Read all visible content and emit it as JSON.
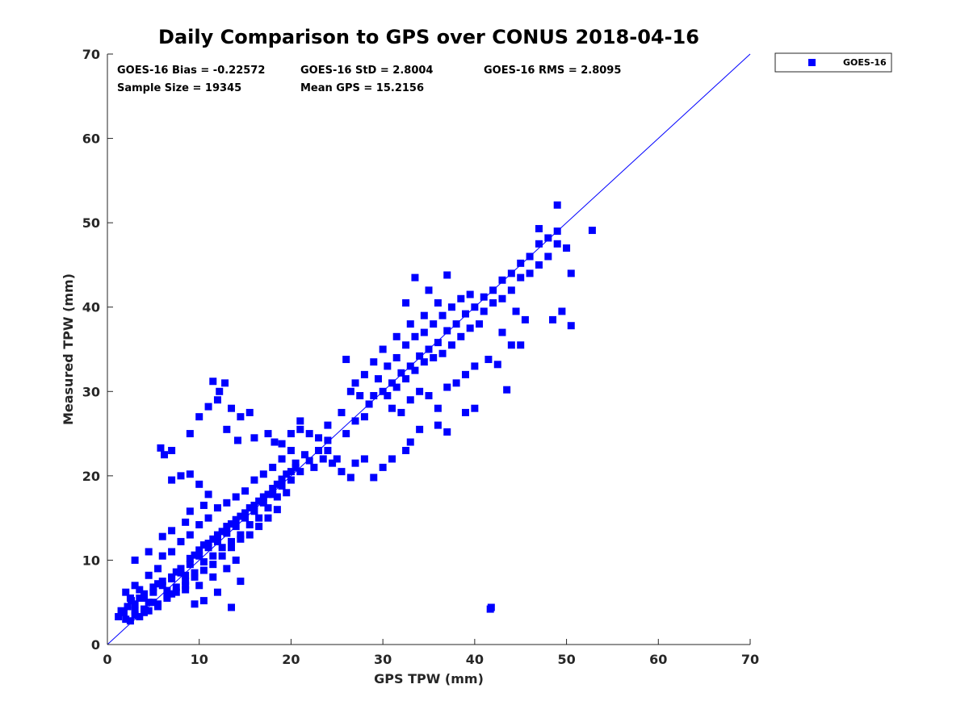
{
  "chart_data": {
    "type": "scatter",
    "title": "Daily Comparison to GPS over CONUS 2018-04-16",
    "xlabel": "GPS TPW (mm)",
    "ylabel": "Measured TPW (mm)",
    "xlim": [
      0,
      70
    ],
    "ylim": [
      0,
      70
    ],
    "xticks": [
      "0",
      "10",
      "20",
      "30",
      "40",
      "50",
      "60",
      "70"
    ],
    "yticks": [
      "0",
      "10",
      "20",
      "30",
      "40",
      "50",
      "60",
      "70"
    ],
    "grid": false,
    "legend": {
      "position": "outside-top-right",
      "entries": [
        "GOES-16"
      ]
    },
    "stats": {
      "bias": "GOES-16 Bias = -0.22572",
      "std": "GOES-16 StD = 2.8004",
      "rms": "GOES-16 RMS = 2.8095",
      "sample": "Sample Size = 19345",
      "mean": "Mean GPS = 15.2156"
    },
    "reference_line": {
      "name": "one-to-one",
      "x": [
        0,
        70
      ],
      "y": [
        0,
        70
      ]
    },
    "series": [
      {
        "name": "GOES-16",
        "color": "#0000ff",
        "marker": "square",
        "points": [
          [
            1.2,
            3.3
          ],
          [
            1.8,
            3.8
          ],
          [
            2.2,
            4.5
          ],
          [
            2.6,
            5.2
          ],
          [
            3.0,
            4.0
          ],
          [
            3.5,
            5.5
          ],
          [
            4.0,
            6.0
          ],
          [
            4.5,
            5.0
          ],
          [
            5.0,
            6.8
          ],
          [
            5.5,
            7.2
          ],
          [
            6.0,
            7.5
          ],
          [
            6.5,
            6.4
          ],
          [
            7.0,
            8.0
          ],
          [
            7.5,
            8.6
          ],
          [
            8.0,
            9.0
          ],
          [
            8.5,
            8.2
          ],
          [
            9.0,
            10.2
          ],
          [
            9.5,
            10.6
          ],
          [
            10.0,
            11.2
          ],
          [
            10.5,
            11.8
          ],
          [
            11.0,
            12.0
          ],
          [
            11.5,
            12.5
          ],
          [
            12.0,
            13.0
          ],
          [
            12.5,
            13.4
          ],
          [
            13.0,
            14.0
          ],
          [
            13.5,
            14.3
          ],
          [
            14.0,
            14.8
          ],
          [
            14.5,
            15.2
          ],
          [
            15.0,
            15.6
          ],
          [
            15.5,
            16.2
          ],
          [
            16.0,
            16.5
          ],
          [
            16.5,
            17.0
          ],
          [
            17.0,
            17.5
          ],
          [
            17.5,
            17.8
          ],
          [
            18.0,
            18.5
          ],
          [
            18.5,
            19.0
          ],
          [
            19.0,
            19.6
          ],
          [
            19.5,
            20.2
          ],
          [
            20.0,
            20.5
          ],
          [
            20.5,
            21.0
          ],
          [
            2.0,
            6.2
          ],
          [
            3.0,
            7.0
          ],
          [
            4.0,
            4.2
          ],
          [
            5.0,
            5.0
          ],
          [
            6.5,
            5.8
          ],
          [
            7.5,
            6.8
          ],
          [
            8.5,
            7.5
          ],
          [
            9.5,
            8.5
          ],
          [
            10.5,
            9.8
          ],
          [
            11.5,
            10.5
          ],
          [
            12.5,
            11.5
          ],
          [
            13.5,
            12.2
          ],
          [
            14.5,
            13.0
          ],
          [
            15.5,
            14.2
          ],
          [
            16.5,
            15.0
          ],
          [
            17.5,
            16.2
          ],
          [
            18.5,
            17.5
          ],
          [
            8.0,
            12.2
          ],
          [
            9.0,
            13.0
          ],
          [
            10.0,
            14.2
          ],
          [
            11.0,
            15.0
          ],
          [
            12.0,
            16.2
          ],
          [
            13.0,
            16.8
          ],
          [
            14.0,
            17.5
          ],
          [
            15.0,
            18.2
          ],
          [
            16.0,
            19.5
          ],
          [
            17.0,
            20.2
          ],
          [
            18.0,
            21.0
          ],
          [
            19.0,
            22.0
          ],
          [
            20.0,
            23.0
          ],
          [
            6.0,
            10.5
          ],
          [
            7.0,
            11.0
          ],
          [
            5.5,
            9.0
          ],
          [
            4.5,
            8.2
          ],
          [
            3.5,
            6.5
          ],
          [
            2.5,
            5.5
          ],
          [
            1.5,
            4.0
          ],
          [
            2.0,
            3.0
          ],
          [
            3.0,
            3.5
          ],
          [
            4.0,
            3.8
          ],
          [
            5.5,
            4.5
          ],
          [
            7.0,
            6.0
          ],
          [
            8.5,
            6.5
          ],
          [
            10.0,
            7.0
          ],
          [
            11.5,
            8.0
          ],
          [
            13.0,
            9.0
          ],
          [
            14.0,
            10.0
          ],
          [
            12.0,
            6.2
          ],
          [
            13.5,
            4.4
          ],
          [
            14.5,
            7.5
          ],
          [
            9.5,
            4.8
          ],
          [
            10.5,
            5.2
          ],
          [
            3.0,
            10.0
          ],
          [
            4.5,
            11.0
          ],
          [
            6.0,
            12.8
          ],
          [
            7.0,
            13.5
          ],
          [
            8.5,
            14.5
          ],
          [
            9.0,
            15.8
          ],
          [
            10.5,
            16.5
          ],
          [
            11.0,
            17.8
          ],
          [
            9.0,
            20.2
          ],
          [
            10.0,
            19.0
          ],
          [
            8.0,
            20.0
          ],
          [
            7.0,
            19.5
          ],
          [
            5.8,
            23.3
          ],
          [
            6.2,
            22.5
          ],
          [
            7.0,
            23.0
          ],
          [
            9.0,
            25.0
          ],
          [
            10.0,
            27.0
          ],
          [
            11.0,
            28.2
          ],
          [
            12.0,
            29.0
          ],
          [
            11.5,
            31.2
          ],
          [
            12.2,
            30.0
          ],
          [
            12.8,
            31.0
          ],
          [
            13.5,
            28.0
          ],
          [
            14.5,
            27.0
          ],
          [
            15.5,
            27.5
          ],
          [
            13.0,
            25.5
          ],
          [
            14.2,
            24.2
          ],
          [
            16.0,
            24.5
          ],
          [
            17.5,
            25.0
          ],
          [
            18.2,
            24.0
          ],
          [
            19.0,
            23.8
          ],
          [
            20.5,
            21.5
          ],
          [
            21.0,
            25.5
          ],
          [
            21.5,
            22.5
          ],
          [
            22.5,
            21.0
          ],
          [
            23.0,
            24.5
          ],
          [
            24.0,
            23.0
          ],
          [
            25.0,
            22.0
          ],
          [
            25.5,
            27.5
          ],
          [
            26.0,
            25.0
          ],
          [
            27.0,
            26.5
          ],
          [
            28.0,
            27.0
          ],
          [
            28.5,
            28.5
          ],
          [
            29.0,
            29.5
          ],
          [
            30.0,
            30.0
          ],
          [
            31.0,
            31.0
          ],
          [
            32.0,
            32.2
          ],
          [
            33.0,
            33.0
          ],
          [
            34.0,
            34.2
          ],
          [
            35.0,
            35.0
          ],
          [
            36.0,
            35.8
          ],
          [
            37.0,
            37.2
          ],
          [
            38.0,
            38.0
          ],
          [
            39.0,
            39.2
          ],
          [
            40.0,
            40.0
          ],
          [
            41.0,
            41.2
          ],
          [
            42.0,
            42.0
          ],
          [
            43.0,
            43.2
          ],
          [
            44.0,
            44.0
          ],
          [
            45.0,
            45.2
          ],
          [
            46.0,
            46.0
          ],
          [
            47.0,
            47.5
          ],
          [
            48.0,
            48.2
          ],
          [
            49.0,
            49.0
          ],
          [
            30.5,
            33.0
          ],
          [
            31.5,
            34.0
          ],
          [
            32.5,
            35.5
          ],
          [
            33.5,
            36.5
          ],
          [
            34.5,
            37.0
          ],
          [
            35.5,
            38.0
          ],
          [
            36.5,
            39.0
          ],
          [
            37.5,
            40.0
          ],
          [
            38.5,
            41.0
          ],
          [
            39.5,
            41.5
          ],
          [
            31.0,
            28.0
          ],
          [
            32.0,
            27.5
          ],
          [
            33.0,
            29.0
          ],
          [
            34.0,
            30.0
          ],
          [
            35.0,
            29.5
          ],
          [
            36.0,
            28.0
          ],
          [
            37.0,
            30.5
          ],
          [
            38.0,
            31.0
          ],
          [
            39.0,
            32.0
          ],
          [
            40.0,
            33.0
          ],
          [
            30.0,
            35.0
          ],
          [
            31.5,
            36.5
          ],
          [
            33.0,
            38.0
          ],
          [
            34.5,
            39.0
          ],
          [
            36.0,
            40.5
          ],
          [
            32.5,
            40.5
          ],
          [
            33.5,
            43.5
          ],
          [
            35.0,
            42.0
          ],
          [
            37.0,
            43.8
          ],
          [
            29.0,
            33.5
          ],
          [
            28.0,
            32.0
          ],
          [
            27.0,
            31.0
          ],
          [
            26.5,
            30.0
          ],
          [
            26.0,
            33.8
          ],
          [
            27.5,
            29.5
          ],
          [
            29.5,
            31.5
          ],
          [
            30.5,
            29.5
          ],
          [
            31.5,
            30.5
          ],
          [
            32.5,
            31.5
          ],
          [
            33.5,
            32.5
          ],
          [
            34.5,
            33.5
          ],
          [
            35.5,
            34.0
          ],
          [
            36.5,
            34.5
          ],
          [
            37.5,
            35.5
          ],
          [
            38.5,
            36.5
          ],
          [
            39.5,
            37.5
          ],
          [
            40.5,
            38.0
          ],
          [
            41.0,
            39.5
          ],
          [
            42.0,
            40.5
          ],
          [
            43.0,
            41.0
          ],
          [
            44.0,
            42.0
          ],
          [
            45.0,
            43.5
          ],
          [
            46.0,
            44.0
          ],
          [
            47.0,
            45.0
          ],
          [
            48.0,
            46.0
          ],
          [
            49.0,
            47.5
          ],
          [
            50.0,
            47.0
          ],
          [
            50.5,
            44.0
          ],
          [
            49.5,
            39.5
          ],
          [
            48.5,
            38.5
          ],
          [
            50.5,
            37.8
          ],
          [
            52.8,
            49.1
          ],
          [
            49.0,
            52.1
          ],
          [
            47.0,
            49.3
          ],
          [
            44.0,
            35.5
          ],
          [
            45.0,
            35.5
          ],
          [
            43.0,
            37.0
          ],
          [
            45.5,
            38.5
          ],
          [
            44.5,
            39.5
          ],
          [
            42.5,
            33.2
          ],
          [
            41.5,
            33.8
          ],
          [
            43.5,
            30.2
          ],
          [
            39.0,
            27.5
          ],
          [
            40.0,
            28.0
          ],
          [
            37.0,
            25.2
          ],
          [
            36.0,
            26.0
          ],
          [
            34.0,
            25.5
          ],
          [
            33.0,
            24.0
          ],
          [
            32.5,
            23.0
          ],
          [
            31.0,
            22.0
          ],
          [
            30.0,
            21.0
          ],
          [
            29.0,
            19.8
          ],
          [
            28.0,
            22.0
          ],
          [
            27.0,
            21.5
          ],
          [
            26.5,
            19.8
          ],
          [
            25.5,
            20.5
          ],
          [
            24.5,
            21.5
          ],
          [
            23.5,
            22.0
          ],
          [
            24.0,
            26.0
          ],
          [
            22.0,
            25.0
          ],
          [
            21.0,
            26.5
          ],
          [
            20.0,
            25.0
          ],
          [
            41.7,
            4.2
          ],
          [
            41.8,
            4.4
          ],
          [
            19.5,
            18.0
          ],
          [
            18.5,
            16.0
          ],
          [
            17.5,
            15.0
          ],
          [
            16.5,
            14.0
          ],
          [
            15.5,
            13.0
          ],
          [
            14.5,
            12.5
          ],
          [
            13.5,
            11.5
          ],
          [
            12.5,
            10.5
          ],
          [
            11.5,
            9.5
          ],
          [
            10.5,
            8.8
          ],
          [
            9.5,
            8.0
          ],
          [
            8.5,
            7.0
          ],
          [
            7.5,
            6.2
          ],
          [
            6.5,
            5.5
          ],
          [
            5.5,
            4.8
          ],
          [
            4.5,
            4.0
          ],
          [
            3.5,
            3.3
          ],
          [
            2.5,
            2.8
          ],
          [
            3.0,
            4.8
          ],
          [
            4.0,
            5.5
          ],
          [
            5.0,
            6.2
          ],
          [
            6.0,
            7.0
          ],
          [
            7.0,
            7.8
          ],
          [
            8.0,
            8.5
          ],
          [
            9.0,
            9.5
          ],
          [
            10.0,
            10.5
          ],
          [
            11.0,
            11.5
          ],
          [
            12.0,
            12.2
          ],
          [
            13.0,
            13.2
          ],
          [
            14.0,
            14.0
          ],
          [
            15.0,
            15.0
          ],
          [
            16.0,
            15.8
          ],
          [
            17.0,
            16.8
          ],
          [
            18.0,
            17.8
          ],
          [
            19.0,
            18.8
          ],
          [
            20.0,
            19.5
          ],
          [
            21.0,
            20.5
          ],
          [
            22.0,
            21.8
          ],
          [
            23.0,
            23.0
          ],
          [
            24.0,
            24.2
          ]
        ]
      }
    ]
  }
}
